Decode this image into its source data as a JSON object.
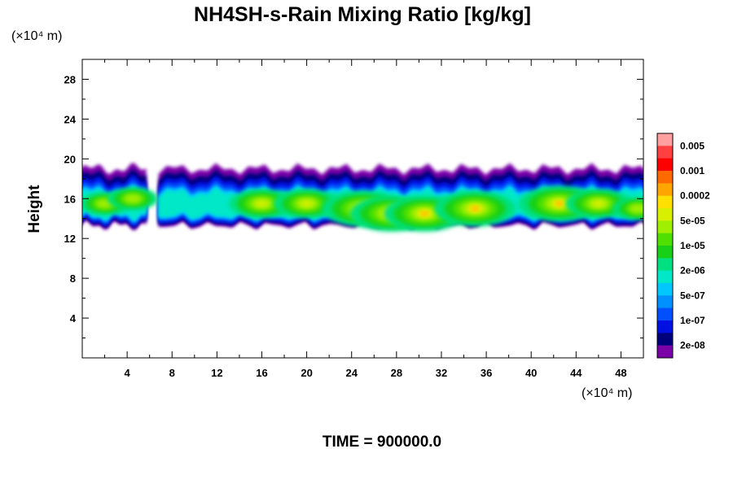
{
  "chart_data": {
    "type": "heatmap",
    "title": "NH4SH-s-Rain Mixing Ratio [kg/kg]",
    "ylabel": "Height",
    "x_unit_label": "(×10⁴ m)",
    "y_unit_label": "(×10⁴ m)",
    "x_ticks": [
      4,
      8,
      12,
      16,
      20,
      24,
      28,
      32,
      36,
      40,
      44,
      48
    ],
    "y_ticks": [
      4,
      8,
      12,
      16,
      20,
      24,
      28
    ],
    "xlim": [
      0,
      50
    ],
    "ylim": [
      0,
      30
    ],
    "colorbar": {
      "labels": [
        "0.005",
        "0.001",
        "0.0002",
        "5e-05",
        "1e-05",
        "2e-06",
        "5e-07",
        "1e-07",
        "2e-08"
      ],
      "colors": [
        "#ff9f9f",
        "#ff4040",
        "#ff0000",
        "#ff6a00",
        "#ffa500",
        "#ffe000",
        "#d8f000",
        "#a0ee00",
        "#50e000",
        "#18d018",
        "#00e080",
        "#00e8c8",
        "#00c8ff",
        "#0090ff",
        "#0050ff",
        "#0010e0",
        "#00007a",
        "#7a00a8"
      ]
    },
    "cloud_layer": {
      "bottom_height": 13.5,
      "top_height": 19.0,
      "gap_x": [
        6.0,
        6.8
      ],
      "hotspots": [
        {
          "x": 2.0,
          "y": 15.5,
          "level": "1e-05"
        },
        {
          "x": 4.5,
          "y": 16.0,
          "level": "1e-05"
        },
        {
          "x": 16.0,
          "y": 15.5,
          "level": "5e-05"
        },
        {
          "x": 20.0,
          "y": 15.5,
          "level": "5e-05"
        },
        {
          "x": 25.0,
          "y": 15.0,
          "level": "0.0002"
        },
        {
          "x": 27.5,
          "y": 14.5,
          "level": "0.0002"
        },
        {
          "x": 30.5,
          "y": 14.5,
          "level": "0.0002"
        },
        {
          "x": 35.0,
          "y": 15.0,
          "level": "0.0002"
        },
        {
          "x": 42.5,
          "y": 15.5,
          "level": "0.0002"
        },
        {
          "x": 46.0,
          "y": 15.5,
          "level": "5e-05"
        },
        {
          "x": 49.5,
          "y": 15.0,
          "level": "1e-05"
        }
      ]
    },
    "footer": "TIME = 900000.0"
  }
}
